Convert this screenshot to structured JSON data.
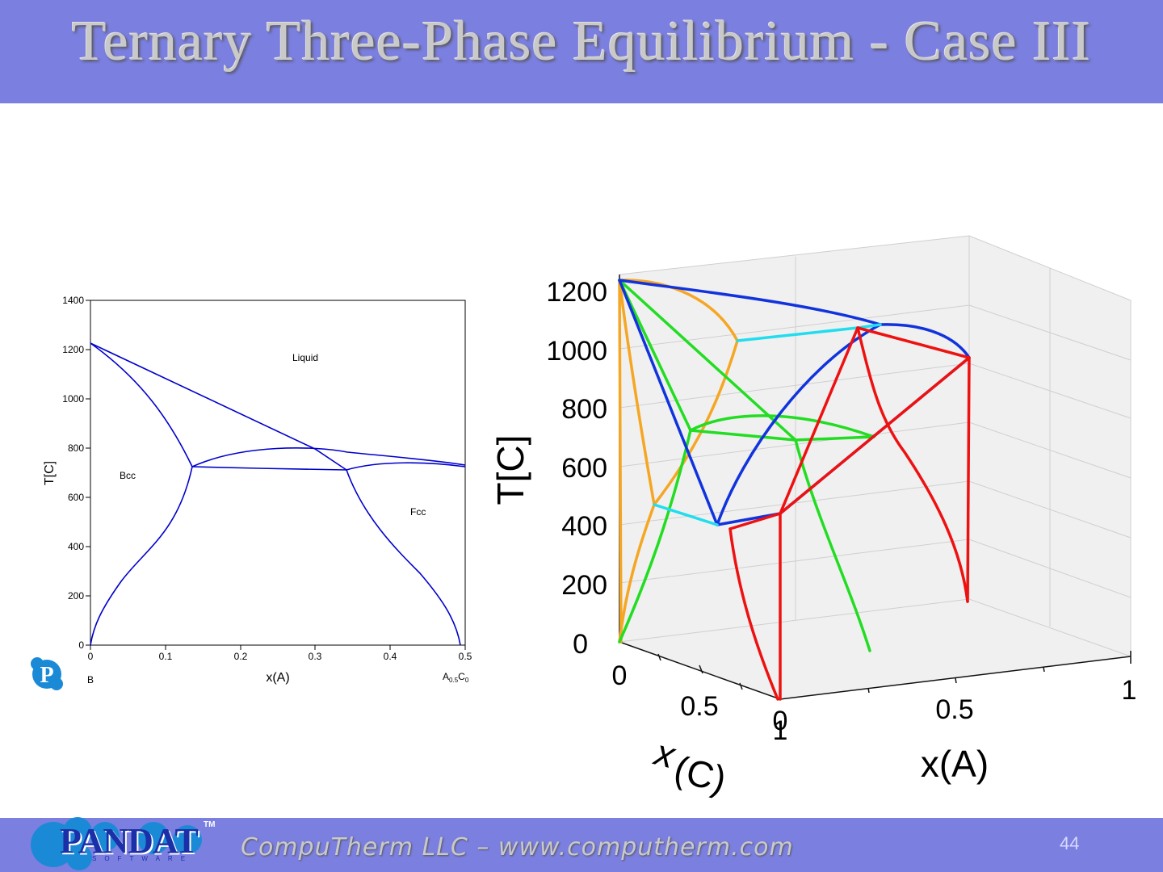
{
  "title": "Ternary Three-Phase Equilibrium - Case III",
  "footer": {
    "company": "CompuTherm LLC – www.computherm.com",
    "page": "44",
    "logo": {
      "word": "PANDAT",
      "sub": "SOFTWARE",
      "tm": "TM",
      "icon": "pandat-p-icon"
    }
  },
  "colors": {
    "bar": "#7b7fe0",
    "boundary": "#0000cc",
    "orange": "#f5a623",
    "green": "#22dd22",
    "red": "#ee1111",
    "blue": "#1133dd",
    "cyan": "#22ddee"
  },
  "left_diagram": {
    "ylabel": "T[C]",
    "xlabel": "x(A)",
    "y_ticks": [
      "1400",
      "1200",
      "1000",
      "800",
      "600",
      "400",
      "200",
      "0"
    ],
    "x_ticks": [
      "0",
      "0.1",
      "0.2",
      "0.3",
      "0.4",
      "0.5"
    ],
    "corner_left": "B",
    "corner_right": {
      "a": "A",
      "a_sub": "0.5",
      "c": "C",
      "c_sub": "0"
    },
    "regions": [
      "Liquid",
      "Bcc",
      "Fcc"
    ]
  },
  "right_diagram": {
    "zlabel": "T[C]",
    "xlabel": "x(A)",
    "ylabel_x": "x",
    "ylabel_c": "(C)",
    "z_ticks": [
      "1200",
      "1000",
      "800",
      "600",
      "400",
      "200",
      "0"
    ],
    "xa_ticks": [
      "0",
      "0.5",
      "1"
    ],
    "xc_ticks": [
      "0",
      "0.5",
      "1"
    ]
  }
}
